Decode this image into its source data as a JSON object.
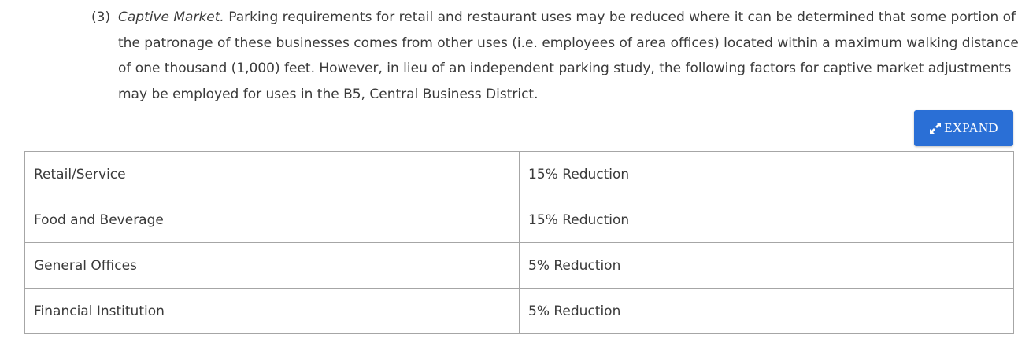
{
  "section": {
    "number": "(3)",
    "title": "Captive Market.",
    "text": " Parking requirements for retail and restaurant uses may be reduced where it can be determined that some portion of the patronage of these businesses comes from other uses (i.e. employees of area offices) located within a maximum walking distance of one thousand (1,000) feet. However, in lieu of an independent parking study, the following factors for captive market adjustments may be employed for uses in the B5, Central Business District."
  },
  "expand_button": {
    "label": "EXPAND",
    "icon": "expand-arrows-icon",
    "color": "#2a6fd6"
  },
  "table": {
    "rows": [
      {
        "use": "Retail/Service",
        "factor": "15% Reduction"
      },
      {
        "use": "Food and Beverage",
        "factor": "15% Reduction"
      },
      {
        "use": "General Offices",
        "factor": "5% Reduction"
      },
      {
        "use": "Financial Institution",
        "factor": "5% Reduction"
      }
    ]
  }
}
